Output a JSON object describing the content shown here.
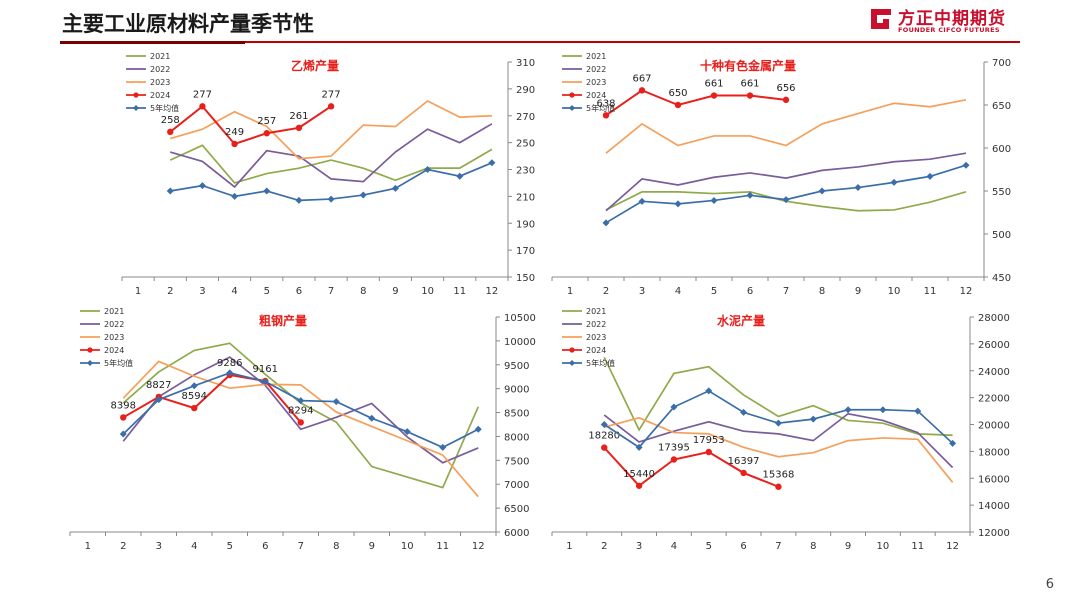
{
  "header": {
    "title": "主要工业原材料产量季节性",
    "logo_cn": "方正中期期货",
    "logo_en": "FOUNDER CIFCO FUTURES",
    "accent": "#c00000"
  },
  "page_number": "6",
  "colors": {
    "2021": "#8faa4a",
    "2022": "#7a5c9a",
    "2023": "#f5a05a",
    "2024": "#e8201c",
    "avg": "#3b6ea8"
  },
  "chart_data": [
    {
      "type": "line",
      "title": "乙烯产量",
      "x": [
        1,
        2,
        3,
        4,
        5,
        6,
        7,
        8,
        9,
        10,
        11,
        12
      ],
      "ylim": [
        150,
        310
      ],
      "yticks": [
        150,
        170,
        190,
        210,
        230,
        250,
        270,
        290,
        310
      ],
      "legend": [
        "2021",
        "2022",
        "2023",
        "2024",
        "5年均值"
      ],
      "series": [
        {
          "name": "2021",
          "values": [
            null,
            237,
            248,
            220,
            227,
            231,
            237,
            231,
            222,
            231,
            231,
            245
          ]
        },
        {
          "name": "2022",
          "values": [
            null,
            243,
            236,
            217,
            244,
            240,
            223,
            221,
            243,
            260,
            250,
            264
          ]
        },
        {
          "name": "2023",
          "values": [
            null,
            253,
            260,
            273,
            262,
            238,
            240,
            263,
            262,
            281,
            269,
            270
          ]
        },
        {
          "name": "2024",
          "values": [
            null,
            258,
            277,
            249,
            257,
            261,
            277,
            null,
            null,
            null,
            null,
            null
          ]
        },
        {
          "name": "5年均值",
          "values": [
            null,
            214,
            218,
            210,
            214,
            207,
            208,
            211,
            216,
            230,
            225,
            235
          ]
        }
      ],
      "labels_2024": [
        "258",
        "277",
        "249",
        "257",
        "261",
        "277"
      ]
    },
    {
      "type": "line",
      "title": "十种有色金属产量",
      "x": [
        1,
        2,
        3,
        4,
        5,
        6,
        7,
        8,
        9,
        10,
        11,
        12
      ],
      "ylim": [
        450,
        700
      ],
      "yticks": [
        450,
        500,
        550,
        600,
        650,
        700
      ],
      "legend": [
        "2021",
        "2022",
        "2023",
        "2024",
        "5年均值"
      ],
      "series": [
        {
          "name": "2021",
          "values": [
            null,
            528,
            549,
            549,
            547,
            549,
            538,
            532,
            527,
            528,
            537,
            549
          ]
        },
        {
          "name": "2022",
          "values": [
            null,
            527,
            564,
            557,
            566,
            571,
            565,
            574,
            578,
            584,
            587,
            594
          ]
        },
        {
          "name": "2023",
          "values": [
            null,
            594,
            628,
            603,
            614,
            614,
            603,
            628,
            640,
            652,
            648,
            656
          ]
        },
        {
          "name": "2024",
          "values": [
            null,
            638,
            667,
            650,
            661,
            661,
            656,
            null,
            null,
            null,
            null,
            null
          ]
        },
        {
          "name": "5年均值",
          "values": [
            null,
            513,
            538,
            535,
            539,
            545,
            540,
            550,
            554,
            560,
            567,
            580
          ]
        }
      ],
      "labels_2024": [
        "638",
        "667",
        "650",
        "661",
        "661",
        "656"
      ]
    },
    {
      "type": "line",
      "title": "粗钢产量",
      "x": [
        1,
        2,
        3,
        4,
        5,
        6,
        7,
        8,
        9,
        10,
        11,
        12
      ],
      "ylim": [
        6000,
        10500
      ],
      "yticks": [
        6000,
        6500,
        7000,
        7500,
        8000,
        8500,
        9000,
        9500,
        10000,
        10500
      ],
      "legend": [
        "2021",
        "2022",
        "2023",
        "2024",
        "5年均值"
      ],
      "series": [
        {
          "name": "2021",
          "values": [
            null,
            8700,
            9350,
            9800,
            9950,
            9300,
            8700,
            8300,
            7370,
            7150,
            6930,
            8620
          ]
        },
        {
          "name": "2022",
          "values": [
            null,
            7900,
            8830,
            9290,
            9660,
            9070,
            8150,
            8400,
            8690,
            7990,
            7450,
            7760
          ]
        },
        {
          "name": "2023",
          "values": [
            null,
            8800,
            9570,
            9260,
            9010,
            9090,
            9080,
            8510,
            8210,
            7910,
            7610,
            6740
          ]
        },
        {
          "name": "2024",
          "values": [
            null,
            8398,
            8827,
            8594,
            9286,
            9161,
            8294,
            null,
            null,
            null,
            null,
            null
          ]
        },
        {
          "name": "5年均值",
          "values": [
            null,
            8050,
            8770,
            9060,
            9330,
            9150,
            8750,
            8730,
            8380,
            8100,
            7770,
            8150
          ]
        }
      ],
      "labels_2024": [
        "8398",
        "8827",
        "8594",
        "9286",
        "9161",
        "8294"
      ]
    },
    {
      "type": "line",
      "title": "水泥产量",
      "x": [
        1,
        2,
        3,
        4,
        5,
        6,
        7,
        8,
        9,
        10,
        11,
        12
      ],
      "ylim": [
        12000,
        28000
      ],
      "yticks": [
        12000,
        14000,
        16000,
        18000,
        20000,
        22000,
        24000,
        26000,
        28000
      ],
      "legend": [
        "2021",
        "2022",
        "2023",
        "2024",
        "5年均值"
      ],
      "series": [
        {
          "name": "2021",
          "values": [
            null,
            25000,
            19600,
            23800,
            24300,
            22200,
            20600,
            21400,
            20300,
            20100,
            19300,
            19200
          ]
        },
        {
          "name": "2022",
          "values": [
            null,
            20700,
            18700,
            19500,
            20200,
            19500,
            19300,
            18800,
            20800,
            20300,
            19400,
            16800
          ]
        },
        {
          "name": "2023",
          "values": [
            null,
            19800,
            20500,
            19400,
            19300,
            18300,
            17600,
            17900,
            18800,
            19000,
            18900,
            15700
          ]
        },
        {
          "name": "2024",
          "values": [
            null,
            18280,
            15440,
            17395,
            17953,
            16397,
            15368,
            null,
            null,
            null,
            null,
            null
          ]
        },
        {
          "name": "5年均值",
          "values": [
            null,
            20000,
            18300,
            21300,
            22500,
            20900,
            20100,
            20400,
            21100,
            21100,
            21000,
            18600
          ]
        }
      ],
      "labels_2024": [
        "18280",
        "15440",
        "17395",
        "17953",
        "16397",
        "15368"
      ]
    }
  ]
}
